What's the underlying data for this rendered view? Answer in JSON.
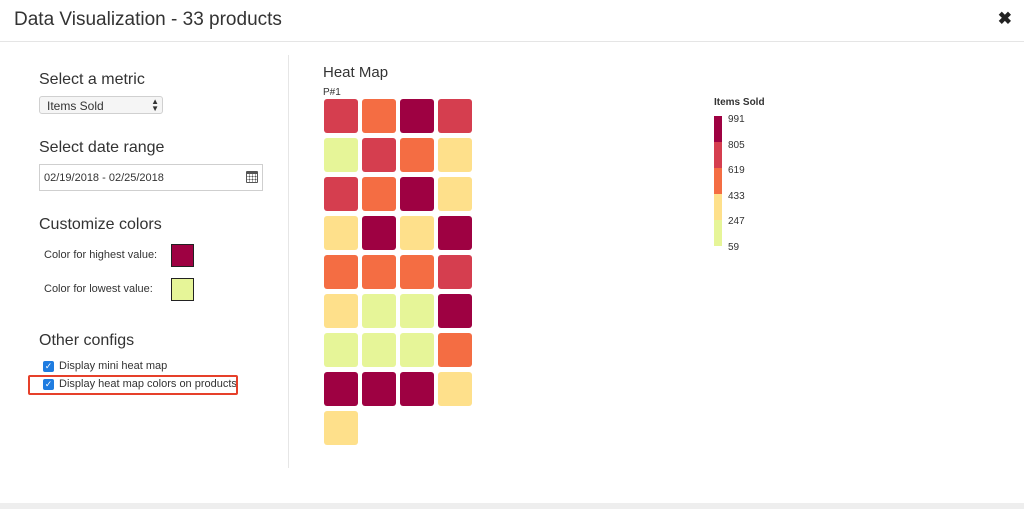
{
  "window": {
    "title": "Data Visualization - 33 products"
  },
  "left_panel": {
    "metric_heading": "Select a metric",
    "metric_select_value": "Items Sold",
    "date_heading": "Select date range",
    "date_range_value": "02/19/2018 - 02/25/2018",
    "colors_heading": "Customize colors",
    "highest_color_label": "Color for highest value:",
    "highest_color": "#9e0142",
    "lowest_color_label": "Color for lowest value:",
    "lowest_color": "#e6f598",
    "other_heading": "Other configs",
    "mini_heat_map_label": "Display mini heat map",
    "mini_heat_map_checked": true,
    "product_colors_label": "Display heat map colors on products",
    "product_colors_checked": true
  },
  "heat_map": {
    "title": "Heat Map",
    "subtitle": "P#1",
    "palette": [
      "#e6f598",
      "#fee08b",
      "#f46d43",
      "#d53e4f",
      "#9e0142"
    ],
    "rows": [
      [
        3,
        2,
        4,
        3
      ],
      [
        0,
        3,
        2,
        1
      ],
      [
        3,
        2,
        4,
        1
      ],
      [
        1,
        4,
        1,
        4
      ],
      [
        2,
        2,
        2,
        3
      ],
      [
        1,
        0,
        0,
        4
      ],
      [
        0,
        0,
        0,
        2
      ],
      [
        4,
        4,
        4,
        1
      ],
      [
        1
      ]
    ]
  },
  "legend": {
    "title": "Items Sold",
    "ticks": [
      "991",
      "805",
      "619",
      "433",
      "247",
      "59"
    ],
    "colors": [
      "#9e0142",
      "#d53e4f",
      "#f46d43",
      "#fee08b",
      "#e6f598"
    ]
  },
  "icons": {
    "close": "close-icon",
    "calendar": "calendar-icon",
    "select_arrows": "chevron-up-down-icon",
    "check": "check-icon"
  }
}
